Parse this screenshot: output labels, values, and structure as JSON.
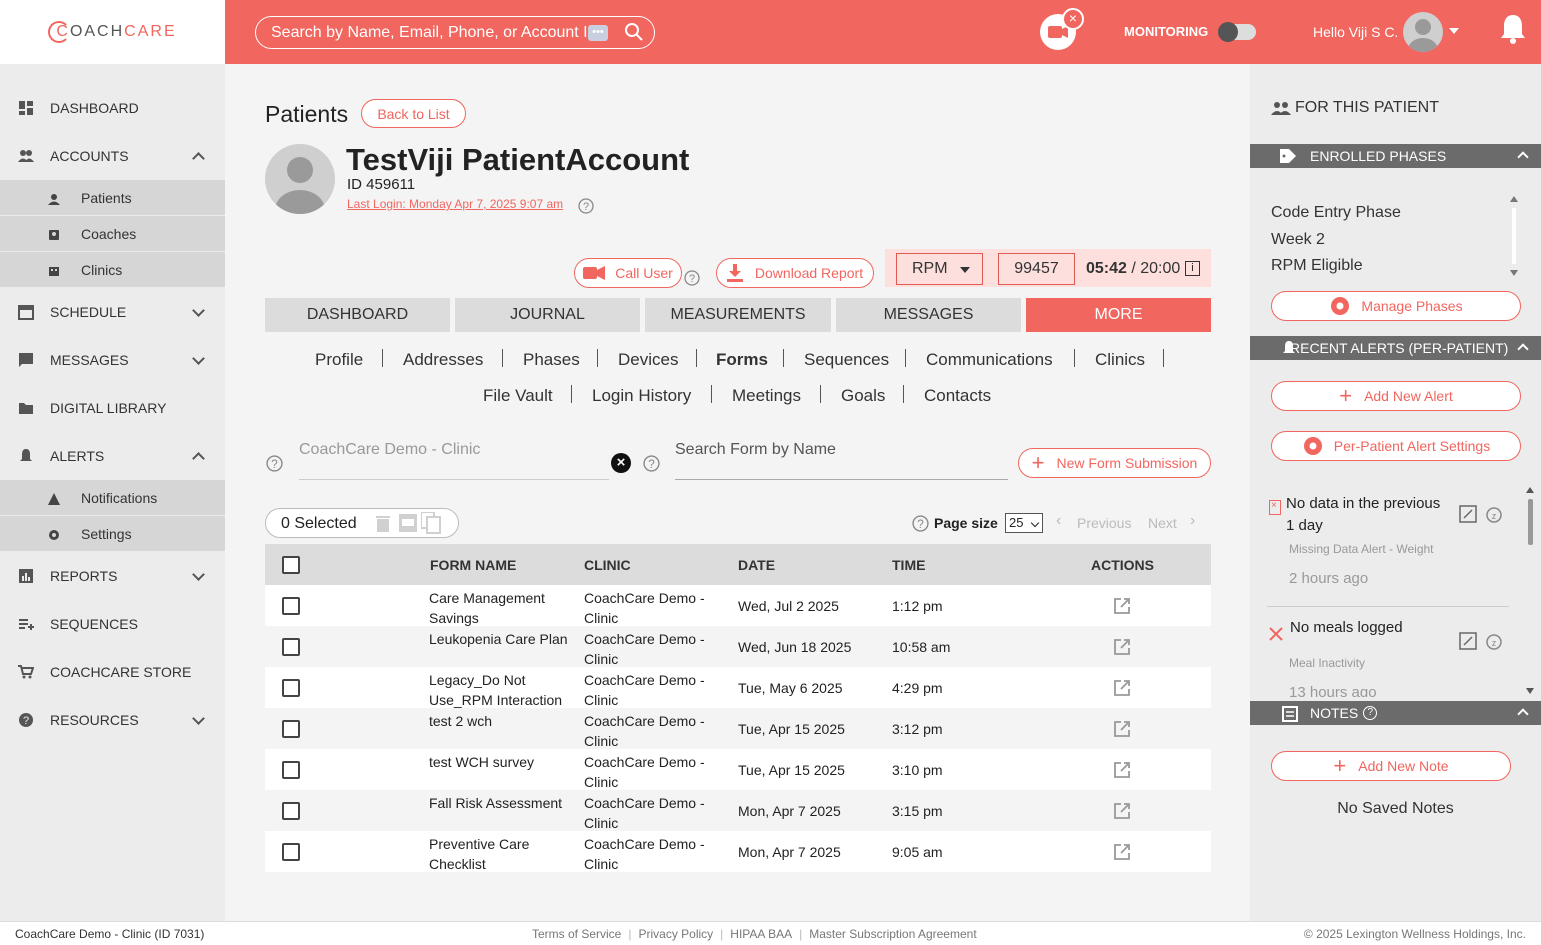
{
  "header": {
    "logo_prefix": "C",
    "logo_rest": "OACH",
    "logo_care": "CARE",
    "search_placeholder": "Search by Name, Email, Phone, or Account I",
    "monitoring_label": "MONITORING",
    "greeting": "Hello Viji S C."
  },
  "sidebar": {
    "items": [
      {
        "label": "DASHBOARD"
      },
      {
        "label": "ACCOUNTS"
      },
      {
        "label": "SCHEDULE"
      },
      {
        "label": "MESSAGES"
      },
      {
        "label": "DIGITAL LIBRARY"
      },
      {
        "label": "ALERTS"
      },
      {
        "label": "REPORTS"
      },
      {
        "label": "SEQUENCES"
      },
      {
        "label": "COACHCARE STORE"
      },
      {
        "label": "RESOURCES"
      }
    ],
    "accounts_sub": [
      "Patients",
      "Coaches",
      "Clinics"
    ],
    "alerts_sub": [
      "Notifications",
      "Settings"
    ]
  },
  "patient": {
    "section_title": "Patients",
    "back_label": "Back to List",
    "name": "TestViji PatientAccount",
    "id": "ID 459611",
    "last_login": "Last Login: Monday Apr 7, 2025 9:07 am"
  },
  "actions": {
    "call_user": "Call User",
    "download_report": "Download Report",
    "program": "RPM",
    "code": "99457",
    "timer_current": "05:42",
    "timer_total": " / 20:00"
  },
  "tabs": [
    "DASHBOARD",
    "JOURNAL",
    "MEASUREMENTS",
    "MESSAGES",
    "MORE"
  ],
  "sublinks_row1": [
    "Profile",
    "Addresses",
    "Phases",
    "Devices",
    "Forms",
    "Sequences",
    "Communications",
    "Clinics"
  ],
  "sublinks_row2": [
    "File Vault",
    "Login History",
    "Meetings",
    "Goals",
    "Contacts"
  ],
  "filters": {
    "clinic_placeholder": "CoachCare Demo - Clinic",
    "search_placeholder": "Search Form by Name",
    "new_form_label": "New Form Submission"
  },
  "table_toolbar": {
    "selected": "0 Selected",
    "page_size_label": "Page size",
    "page_size_value": "25",
    "previous": "Previous",
    "next": "Next"
  },
  "table": {
    "headers": [
      "FORM NAME",
      "CLINIC",
      "DATE",
      "TIME",
      "ACTIONS"
    ],
    "rows": [
      {
        "name": "Care Management Savings",
        "clinic": "CoachCare Demo - Clinic",
        "date": "Wed, Jul 2 2025",
        "time": "1:12 pm"
      },
      {
        "name": "Leukopenia Care Plan",
        "clinic": "CoachCare Demo - Clinic",
        "date": "Wed, Jun 18 2025",
        "time": "10:58 am"
      },
      {
        "name": "Legacy_Do Not Use_RPM Interaction",
        "clinic": "CoachCare Demo - Clinic",
        "date": "Tue, May 6 2025",
        "time": "4:29 pm"
      },
      {
        "name": "test 2 wch",
        "clinic": "CoachCare Demo - Clinic",
        "date": "Tue, Apr 15 2025",
        "time": "3:12 pm"
      },
      {
        "name": "test WCH survey",
        "clinic": "CoachCare Demo - Clinic",
        "date": "Tue, Apr 15 2025",
        "time": "3:10 pm"
      },
      {
        "name": "Fall Risk Assessment",
        "clinic": "CoachCare Demo - Clinic",
        "date": "Mon, Apr 7 2025",
        "time": "3:15 pm"
      },
      {
        "name": "Preventive Care Checklist",
        "clinic": "CoachCare Demo - Clinic",
        "date": "Mon, Apr 7 2025",
        "time": "9:05 am"
      }
    ]
  },
  "right_panel": {
    "title": "FOR THIS PATIENT",
    "enrolled_phases_title": "ENROLLED PHASES",
    "phases": [
      "Code Entry Phase",
      "Week 2",
      "RPM Eligible"
    ],
    "manage_phases": "Manage Phases",
    "recent_alerts_title": "RECENT ALERTS (PER-PATIENT)",
    "add_alert": "Add New Alert",
    "alert_settings": "Per-Patient Alert Settings",
    "alerts": [
      {
        "title": "No data in the previous 1 day",
        "type": "Missing Data Alert - Weight",
        "age": "2 hours ago"
      },
      {
        "title": "No meals logged",
        "type": "Meal Inactivity",
        "age": "13 hours ago"
      }
    ],
    "notes_title": "NOTES",
    "add_note": "Add New Note",
    "no_notes": "No Saved Notes"
  },
  "footer": {
    "clinic": "CoachCare Demo - Clinic (ID 7031)",
    "links": [
      "Terms of Service",
      "Privacy Policy",
      "HIPAA BAA",
      "Master Subscription Agreement"
    ],
    "copyright": "© 2025 Lexington Wellness Holdings, Inc."
  },
  "colors": {
    "accent": "#f1665f",
    "panel_header": "#6b6b6b"
  }
}
